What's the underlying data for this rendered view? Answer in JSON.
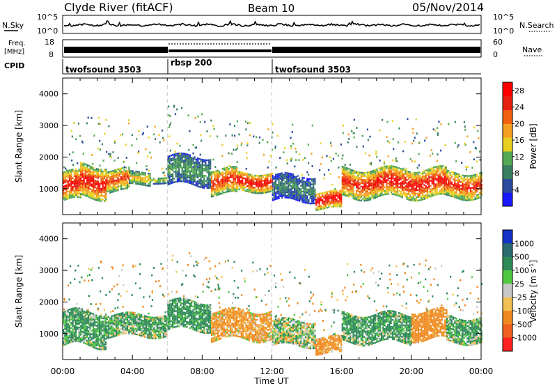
{
  "header": {
    "station": "Clyde River (fitACF)",
    "beam": "Beam 10",
    "date": "05/Nov/2014"
  },
  "labels": {
    "nsky": "N.Sky",
    "nsearch": "N.Search",
    "freq_line1": "Freq.",
    "freq_line2": "[MHz]",
    "nave": "Nave",
    "cpid": "CPID"
  },
  "noise_axis": {
    "left_ticks": [
      "10^5",
      "10^0"
    ],
    "right_ticks": [
      "10^5",
      "10^0"
    ]
  },
  "freq_axis": {
    "left_ticks": [
      "18",
      "8"
    ],
    "right_ticks": [
      "60",
      "0"
    ]
  },
  "cpid_segments": [
    {
      "label": "twofsound 3503",
      "start_hr": 0,
      "end_hr": 6
    },
    {
      "label": "rbsp 200",
      "start_hr": 6,
      "end_hr": 12
    },
    {
      "label": "twofsound 3503",
      "start_hr": 12,
      "end_hr": 24
    }
  ],
  "colors": {
    "power_scale": [
      "#1a1aff",
      "#2a4aa0",
      "#3a8060",
      "#55aa55",
      "#e8d020",
      "#f5a020",
      "#f06010",
      "#e82010",
      "#ff0000"
    ],
    "velocity_scale": [
      "#1432c8",
      "#2a6a70",
      "#2e8a58",
      "#50c840",
      "#c8c8c8",
      "#f0c050",
      "#f08a20",
      "#f06020",
      "#ff2020"
    ]
  },
  "chart_data": [
    {
      "type": "heatmap",
      "name": "power",
      "xlabel": "",
      "ylabel": "Slant Range [km]",
      "xlim": [
        0,
        24
      ],
      "ylim": [
        180,
        4500
      ],
      "yticks": [
        1000,
        2000,
        3000,
        4000
      ],
      "colorbar_label": "Power [dB]",
      "colorbar_ticks": [
        "4",
        "8",
        "12",
        "16",
        "20",
        "24",
        "28"
      ],
      "colorbar_range": [
        0,
        30
      ],
      "echo_bands": [
        {
          "t0": 0.0,
          "t1": 1.0,
          "r0": 600,
          "r1": 1500,
          "db": 26
        },
        {
          "t0": 1.0,
          "t1": 2.5,
          "r0": 700,
          "r1": 1700,
          "db": 26
        },
        {
          "t0": 2.5,
          "t1": 3.8,
          "r0": 900,
          "r1": 1600,
          "db": 22
        },
        {
          "t0": 3.8,
          "t1": 5.0,
          "r0": 1100,
          "r1": 1500,
          "db": 16
        },
        {
          "t0": 5.0,
          "t1": 6.0,
          "r0": 1150,
          "r1": 1350,
          "db": 14
        },
        {
          "t0": 6.0,
          "t1": 8.5,
          "r0": 1100,
          "r1": 2000,
          "db": 10
        },
        {
          "t0": 8.5,
          "t1": 10.0,
          "r0": 800,
          "r1": 1600,
          "db": 24
        },
        {
          "t0": 10.0,
          "t1": 12.0,
          "r0": 900,
          "r1": 1500,
          "db": 26
        },
        {
          "t0": 12.0,
          "t1": 14.5,
          "r0": 600,
          "r1": 1400,
          "db": 8
        },
        {
          "t0": 14.5,
          "t1": 16.0,
          "r0": 350,
          "r1": 900,
          "db": 28
        },
        {
          "t0": 16.0,
          "t1": 18.0,
          "r0": 700,
          "r1": 1600,
          "db": 24
        },
        {
          "t0": 18.0,
          "t1": 22.0,
          "r0": 700,
          "r1": 1600,
          "db": 26
        },
        {
          "t0": 22.0,
          "t1": 24.0,
          "r0": 700,
          "r1": 1500,
          "db": 24
        }
      ]
    },
    {
      "type": "heatmap",
      "name": "velocity",
      "xlabel": "Time UT",
      "ylabel": "Slant Range [km]",
      "xlim": [
        0,
        24
      ],
      "ylim": [
        180,
        4500
      ],
      "xticks": [
        "00:00",
        "04:00",
        "08:00",
        "12:00",
        "16:00",
        "20:00",
        "00:00"
      ],
      "yticks": [
        1000,
        2000,
        3000,
        4000
      ],
      "colorbar_label": "Velocity [m s-1]",
      "colorbar_ticks": [
        "1000",
        "500",
        "100",
        "25",
        "-25",
        "-100",
        "-500",
        "-1000"
      ],
      "echo_bands": [
        {
          "t0": 0.0,
          "t1": 2.5,
          "r0": 600,
          "r1": 1700,
          "v": 150
        },
        {
          "t0": 2.5,
          "t1": 6.0,
          "r0": 900,
          "r1": 1600,
          "v": 120
        },
        {
          "t0": 6.0,
          "t1": 8.5,
          "r0": 1100,
          "r1": 2000,
          "v": 200
        },
        {
          "t0": 8.5,
          "t1": 12.0,
          "r0": 800,
          "r1": 1700,
          "v": -150
        },
        {
          "t0": 12.0,
          "t1": 14.5,
          "r0": 600,
          "r1": 1400,
          "v": 50
        },
        {
          "t0": 14.5,
          "t1": 16.0,
          "r0": 350,
          "r1": 900,
          "v": -200
        },
        {
          "t0": 16.0,
          "t1": 20.0,
          "r0": 700,
          "r1": 1600,
          "v": 150
        },
        {
          "t0": 20.0,
          "t1": 22.0,
          "r0": 800,
          "r1": 1700,
          "v": -250
        },
        {
          "t0": 22.0,
          "t1": 24.0,
          "r0": 700,
          "r1": 1500,
          "v": 120
        }
      ]
    }
  ]
}
